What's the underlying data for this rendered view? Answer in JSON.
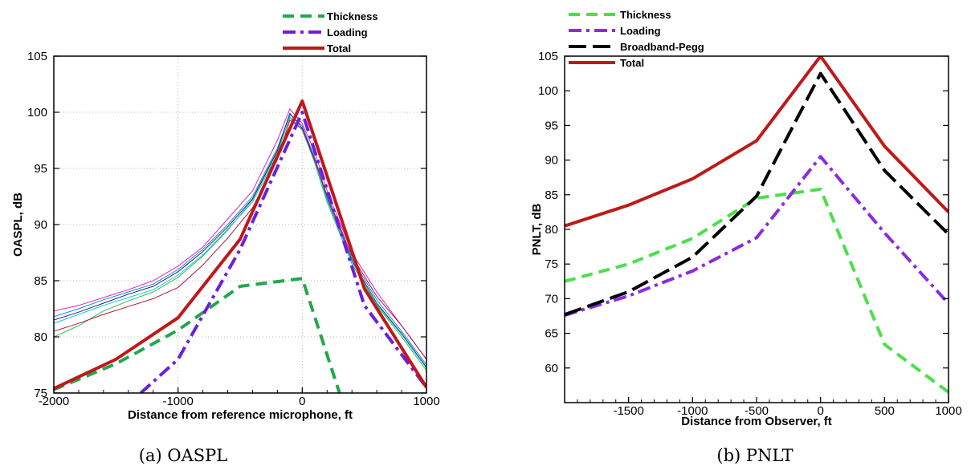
{
  "figure": {
    "captions": [
      "(a) OASPL",
      "(b) PNLT"
    ]
  },
  "chart_data": [
    {
      "type": "line",
      "xlabel": "Distance from reference microphone, ft",
      "ylabel": "OASPL, dB",
      "xlim": [
        -2000,
        1000
      ],
      "ylim": [
        75,
        105
      ],
      "xticks": [
        -2000,
        -1000,
        0,
        1000
      ],
      "yticks": [
        75,
        80,
        85,
        90,
        95,
        100,
        105
      ],
      "xtick_labels": [
        "-2000",
        "-1000",
        "0",
        "1000"
      ],
      "ytick_labels": [
        "75",
        "80",
        "85",
        "90",
        "95",
        "100",
        "105"
      ],
      "legend_position": "top-right",
      "grid": true,
      "series": [
        {
          "name": "Thickness",
          "color": "#22a84a",
          "style": "dashed",
          "x": [
            -2000,
            -1500,
            -1000,
            -500,
            0,
            300
          ],
          "y": [
            75.3,
            77.6,
            80.6,
            84.5,
            85.2,
            75.0
          ]
        },
        {
          "name": "Loading",
          "color": "#6a1fe0",
          "style": "dashdot",
          "x": [
            -1300,
            -1000,
            -500,
            0,
            500,
            1000
          ],
          "y": [
            75.0,
            78.0,
            87.8,
            100.0,
            82.8,
            75.5
          ]
        },
        {
          "name": "Total",
          "color": "#c01818",
          "style": "solid",
          "x": [
            -2000,
            -1500,
            -1000,
            -500,
            0,
            500,
            1000
          ],
          "y": [
            75.4,
            78.0,
            81.7,
            88.7,
            101.0,
            84.3,
            75.5
          ]
        }
      ],
      "measured_series": [
        {
          "color": "#e020c0",
          "x": [
            -2000,
            -1800,
            -1600,
            -1400,
            -1200,
            -1000,
            -800,
            -600,
            -400,
            -200,
            -100,
            0,
            100,
            200,
            400,
            600,
            800,
            1000
          ],
          "y": [
            82.3,
            82.8,
            83.5,
            84.2,
            85.0,
            86.3,
            88.0,
            90.5,
            93.0,
            97.5,
            100.3,
            99.0,
            96.5,
            93.0,
            87.5,
            84.0,
            81.0,
            78.0
          ]
        },
        {
          "color": "#1a8acc",
          "x": [
            -2000,
            -1800,
            -1600,
            -1400,
            -1200,
            -1000,
            -800,
            -600,
            -400,
            -200,
            -100,
            0,
            100,
            200,
            400,
            600,
            800,
            1000
          ],
          "y": [
            81.8,
            82.5,
            83.3,
            84.0,
            84.7,
            86.0,
            87.8,
            90.0,
            92.5,
            96.8,
            99.8,
            98.8,
            96.0,
            92.5,
            87.0,
            83.3,
            80.5,
            77.5
          ]
        },
        {
          "color": "#30c050",
          "x": [
            -2000,
            -1800,
            -1600,
            -1400,
            -1200,
            -1000,
            -800,
            -600,
            -400,
            -200,
            -100,
            0,
            100,
            200,
            400,
            600,
            800,
            1000
          ],
          "y": [
            80.0,
            81.0,
            82.3,
            83.2,
            84.0,
            85.3,
            87.2,
            89.5,
            92.2,
            96.5,
            99.5,
            98.5,
            95.5,
            92.0,
            86.5,
            82.8,
            80.0,
            77.0
          ]
        },
        {
          "color": "#202090",
          "x": [
            -2000,
            -1800,
            -1600,
            -1400,
            -1200,
            -1000,
            -800,
            -600,
            -400,
            -200,
            -100,
            0,
            100,
            200,
            400,
            600,
            800,
            1000
          ],
          "y": [
            81.5,
            82.2,
            83.0,
            83.8,
            84.5,
            85.8,
            87.6,
            89.8,
            92.3,
            96.6,
            99.9,
            98.6,
            95.8,
            92.3,
            86.8,
            83.0,
            80.3,
            77.3
          ]
        },
        {
          "color": "#20c8c8",
          "x": [
            -2000,
            -1800,
            -1600,
            -1400,
            -1200,
            -1000,
            -800,
            -600,
            -400,
            -200,
            -100,
            0,
            100,
            200,
            400,
            600,
            800,
            1000
          ],
          "y": [
            81.2,
            82.0,
            82.8,
            83.5,
            84.2,
            85.5,
            87.3,
            89.6,
            92.0,
            96.3,
            99.6,
            98.4,
            95.6,
            92.2,
            86.7,
            82.9,
            80.2,
            77.2
          ]
        },
        {
          "color": "#b01848",
          "x": [
            -2000,
            -1800,
            -1600,
            -1400,
            -1200,
            -1000,
            -800,
            -600,
            -400,
            -200,
            -100,
            0,
            100,
            200,
            400,
            600,
            800,
            1000
          ],
          "y": [
            80.5,
            81.2,
            82.0,
            82.7,
            83.4,
            84.4,
            86.4,
            88.8,
            91.5,
            95.8,
            99.3,
            98.5,
            95.7,
            92.6,
            87.2,
            83.6,
            81.0,
            78.0
          ]
        }
      ]
    },
    {
      "type": "line",
      "xlabel": "Distance from Observer, ft",
      "ylabel": "PNLT, dB",
      "xlim": [
        -2000,
        1000
      ],
      "ylim": [
        55,
        105
      ],
      "xticks": [
        -1500,
        -1000,
        -500,
        0,
        500,
        1000
      ],
      "yticks": [
        60,
        65,
        70,
        75,
        80,
        85,
        90,
        95,
        100,
        105
      ],
      "xtick_labels": [
        "-1500",
        "-1000",
        "-500",
        "0",
        "500",
        "1000"
      ],
      "ytick_labels": [
        "60",
        "65",
        "70",
        "75",
        "80",
        "85",
        "90",
        "95",
        "100",
        "105"
      ],
      "legend_position": "top-left",
      "grid": false,
      "series": [
        {
          "name": "Thickness",
          "color": "#4be04b",
          "style": "dashed",
          "x": [
            -2000,
            -1500,
            -1000,
            -500,
            0,
            500,
            1000
          ],
          "y": [
            72.5,
            75.0,
            78.7,
            84.5,
            85.8,
            63.4,
            56.5
          ]
        },
        {
          "name": "Loading",
          "color": "#8a2be2",
          "style": "dashdot",
          "x": [
            -2000,
            -1500,
            -1000,
            -500,
            0,
            500,
            1000
          ],
          "y": [
            67.6,
            70.4,
            74.0,
            78.8,
            90.5,
            79.5,
            69.3
          ]
        },
        {
          "name": "Broadband-Pegg",
          "color": "#000000",
          "style": "longdash",
          "x": [
            -2000,
            -1500,
            -1000,
            -500,
            0,
            500,
            1000
          ],
          "y": [
            67.7,
            71.0,
            76.0,
            84.8,
            102.5,
            88.5,
            79.3
          ]
        },
        {
          "name": "Total",
          "color": "#c01818",
          "style": "solid",
          "x": [
            -2000,
            -1500,
            -1000,
            -500,
            0,
            500,
            1000
          ],
          "y": [
            80.5,
            83.5,
            87.3,
            92.8,
            105.0,
            92.0,
            82.5
          ]
        }
      ]
    }
  ]
}
